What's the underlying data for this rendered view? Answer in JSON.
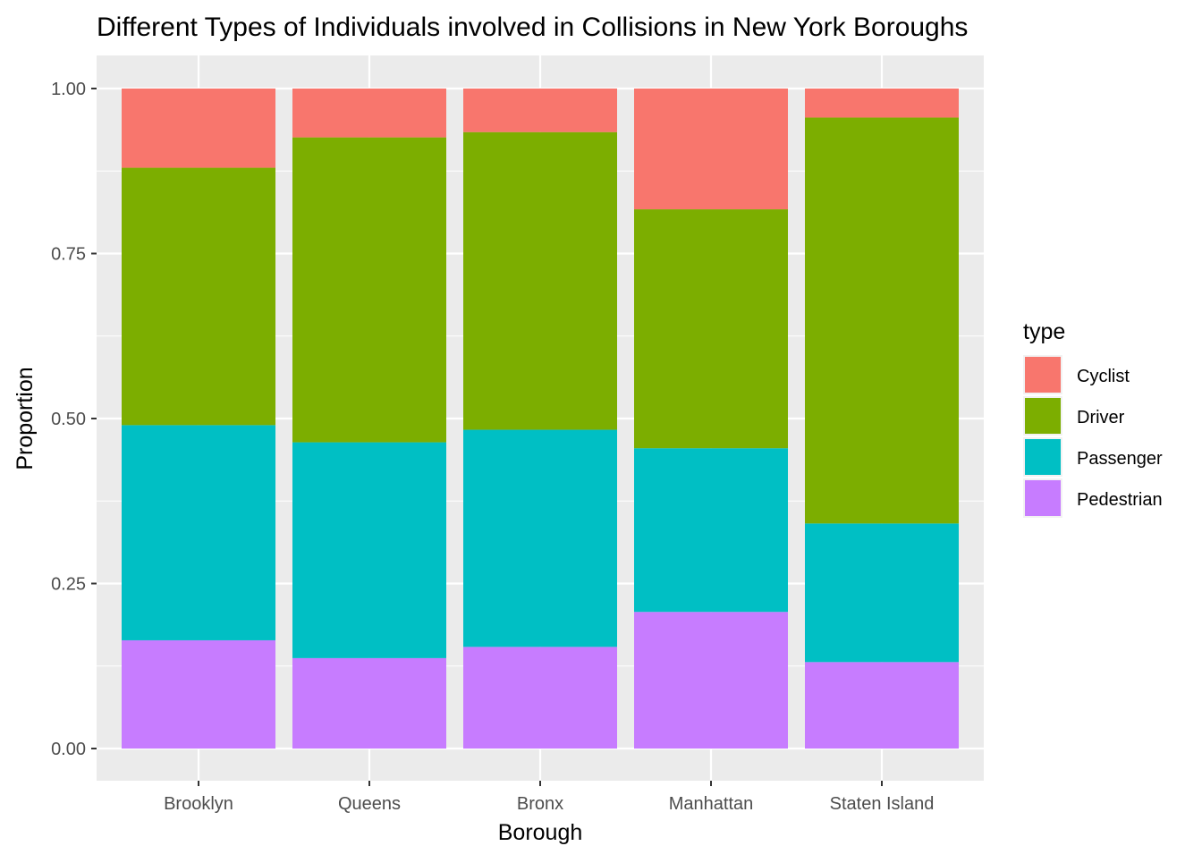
{
  "chart_data": {
    "type": "bar",
    "stacked": true,
    "title": "Different Types of Individuals involved in Collisions in New York Boroughs",
    "xlabel": "Borough",
    "ylabel": "Proportion",
    "ylim": [
      0,
      1
    ],
    "yticks": [
      "0.00",
      "0.25",
      "0.50",
      "0.75",
      "1.00"
    ],
    "categories": [
      "Brooklyn",
      "Queens",
      "Bronx",
      "Manhattan",
      "Staten Island"
    ],
    "legend": {
      "title": "type",
      "position": "right"
    },
    "grid": true,
    "series": [
      {
        "name": "Pedestrian",
        "color": "#C77CFF",
        "values": [
          0.164,
          0.137,
          0.154,
          0.207,
          0.131
        ]
      },
      {
        "name": "Passenger",
        "color": "#00BFC4",
        "values": [
          0.326,
          0.327,
          0.329,
          0.248,
          0.21
        ]
      },
      {
        "name": "Driver",
        "color": "#7CAE00",
        "values": [
          0.39,
          0.462,
          0.451,
          0.362,
          0.615
        ]
      },
      {
        "name": "Cyclist",
        "color": "#F8766D",
        "values": [
          0.12,
          0.074,
          0.066,
          0.183,
          0.044
        ]
      }
    ],
    "legend_order": [
      "Cyclist",
      "Driver",
      "Passenger",
      "Pedestrian"
    ]
  }
}
